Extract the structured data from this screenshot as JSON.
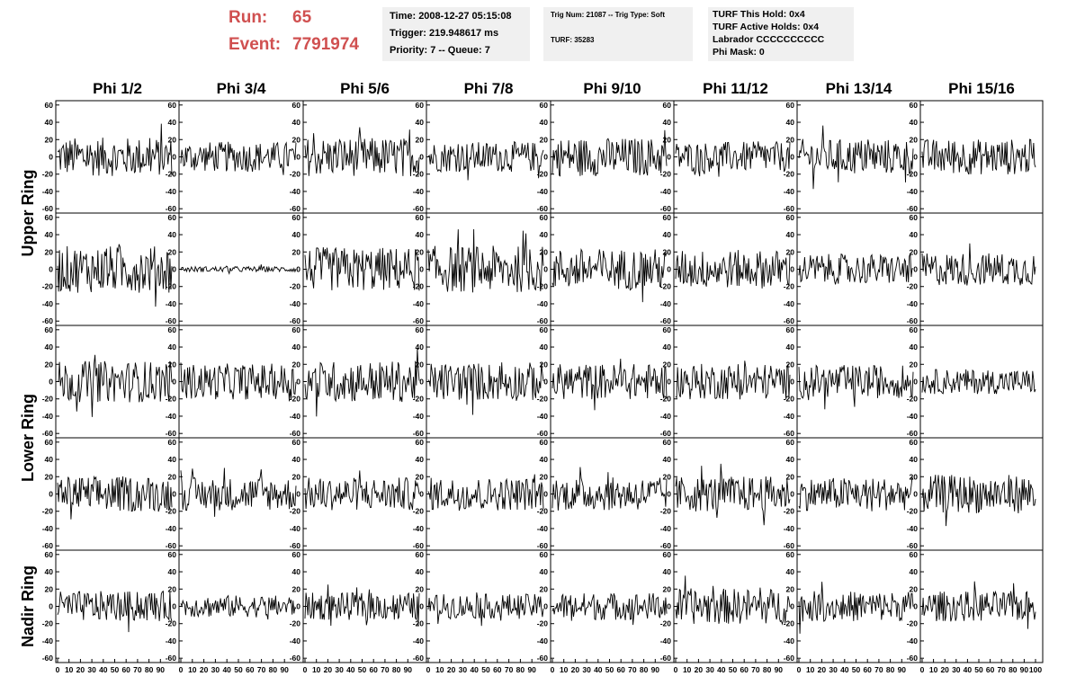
{
  "header": {
    "run_label": "Run:",
    "run_value": "65",
    "event_label": "Event:",
    "event_value": "7791974"
  },
  "info_box_1": {
    "time": "Time: 2008-12-27 05:15:08",
    "trigger": "Trigger: 219.948617 ms",
    "priority": "Priority: 7 -- Queue: 7"
  },
  "info_box_2": {
    "trig": "Trig Num: 21087 -- Trig Type: Soft",
    "turf": "TURF: 35283"
  },
  "info_box_3": {
    "hold": "TURF This Hold: 0x4",
    "active": "TURF Active Holds: 0x4",
    "labrador": "Labrador CCCCCCCCCC",
    "phimask": "Phi Mask: 0"
  },
  "colors": {
    "header_text": "#d05050",
    "info_bg": "#f0f0f0",
    "trace": "#000000"
  },
  "chart_data": {
    "type": "line",
    "columns": [
      "Phi 1/2",
      "Phi 3/4",
      "Phi 5/6",
      "Phi 7/8",
      "Phi 9/10",
      "Phi 11/12",
      "Phi 13/14",
      "Phi 15/16"
    ],
    "rows": [
      {
        "label": "Upper Ring",
        "panels": 2
      },
      {
        "label": "Lower Ring",
        "panels": 2
      },
      {
        "label": "Nadir Ring",
        "panels": 1
      }
    ],
    "ylim": [
      -65,
      65
    ],
    "yticks": [
      60,
      40,
      20,
      0,
      -20,
      -40,
      -60
    ],
    "xlim": [
      0,
      100
    ],
    "xticks": [
      "0",
      "10",
      "20",
      "30",
      "40",
      "50",
      "60",
      "70",
      "80",
      "90",
      "100"
    ],
    "points_per_trace": 120,
    "trace_amplitudes": [
      [
        14,
        11,
        14,
        11,
        14,
        11,
        13,
        13
      ],
      [
        17,
        2,
        16,
        17,
        15,
        14,
        11,
        12
      ],
      [
        15,
        13,
        15,
        14,
        13,
        13,
        12,
        9
      ],
      [
        13,
        12,
        12,
        12,
        12,
        13,
        12,
        14
      ],
      [
        11,
        8,
        10,
        9,
        10,
        13,
        11,
        11
      ]
    ]
  }
}
